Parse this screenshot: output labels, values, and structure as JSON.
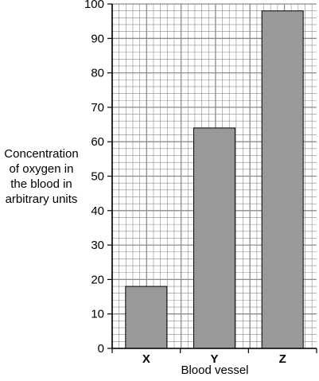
{
  "chart_data": {
    "type": "bar",
    "title": "",
    "xlabel": "Blood vessel",
    "ylabel_lines": [
      "Concentration",
      "of oxygen in",
      "the blood in",
      "arbitrary units"
    ],
    "categories": [
      "X",
      "Y",
      "Z"
    ],
    "values": [
      18,
      64,
      98
    ],
    "ylim": [
      0,
      100
    ],
    "yticks": [
      0,
      10,
      20,
      30,
      40,
      50,
      60,
      70,
      80,
      90,
      100
    ],
    "yticks_labels": [
      "0",
      "10",
      "20",
      "30",
      "40",
      "50",
      "60",
      "70",
      "80",
      "90",
      "100"
    ],
    "grid": true,
    "minor_grid_per_major": 5,
    "bar_color": "#999999",
    "grid_color": "#8c8c8c"
  }
}
